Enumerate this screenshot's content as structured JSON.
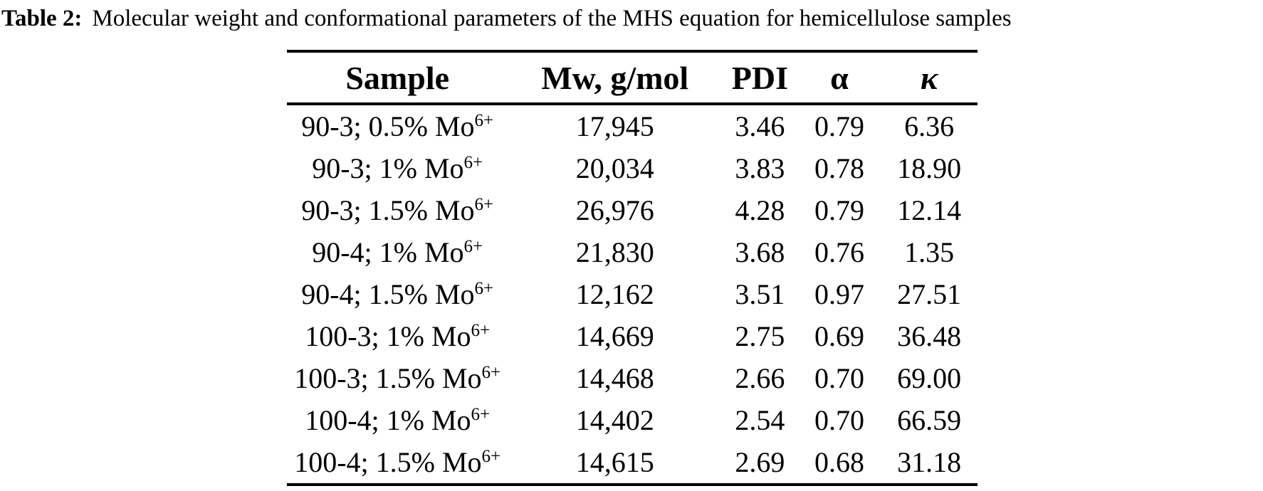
{
  "caption": {
    "label": "Table 2:",
    "text": "Molecular weight and conformational parameters of the MHS equation for hemicellulose samples"
  },
  "table": {
    "headers": {
      "sample": "Sample",
      "mw": "Mw, g/mol",
      "pdi": "PDI",
      "alpha": "α",
      "kappa": "κ"
    },
    "rows": [
      {
        "sample": "90-3; 0.5% Mo",
        "sample_sup": "6+",
        "mw": "17,945",
        "pdi": "3.46",
        "alpha": "0.79",
        "kappa": "6.36"
      },
      {
        "sample": "90-3; 1% Mo",
        "sample_sup": "6+",
        "mw": "20,034",
        "pdi": "3.83",
        "alpha": "0.78",
        "kappa": "18.90"
      },
      {
        "sample": "90-3; 1.5% Mo",
        "sample_sup": "6+",
        "mw": "26,976",
        "pdi": "4.28",
        "alpha": "0.79",
        "kappa": "12.14"
      },
      {
        "sample": "90-4; 1% Mo",
        "sample_sup": "6+",
        "mw": "21,830",
        "pdi": "3.68",
        "alpha": "0.76",
        "kappa": "1.35"
      },
      {
        "sample": "90-4; 1.5% Mo",
        "sample_sup": "6+",
        "mw": "12,162",
        "pdi": "3.51",
        "alpha": "0.97",
        "kappa": "27.51"
      },
      {
        "sample": "100-3; 1% Mo",
        "sample_sup": "6+",
        "mw": "14,669",
        "pdi": "2.75",
        "alpha": "0.69",
        "kappa": "36.48"
      },
      {
        "sample": "100-3; 1.5% Mo",
        "sample_sup": "6+",
        "mw": "14,468",
        "pdi": "2.66",
        "alpha": "0.70",
        "kappa": "69.00"
      },
      {
        "sample": "100-4; 1% Mo",
        "sample_sup": "6+",
        "mw": "14,402",
        "pdi": "2.54",
        "alpha": "0.70",
        "kappa": "66.59"
      },
      {
        "sample": "100-4; 1.5% Mo",
        "sample_sup": "6+",
        "mw": "14,615",
        "pdi": "2.69",
        "alpha": "0.68",
        "kappa": "31.18"
      }
    ]
  },
  "colors": {
    "text": "#000000",
    "background": "#ffffff"
  }
}
